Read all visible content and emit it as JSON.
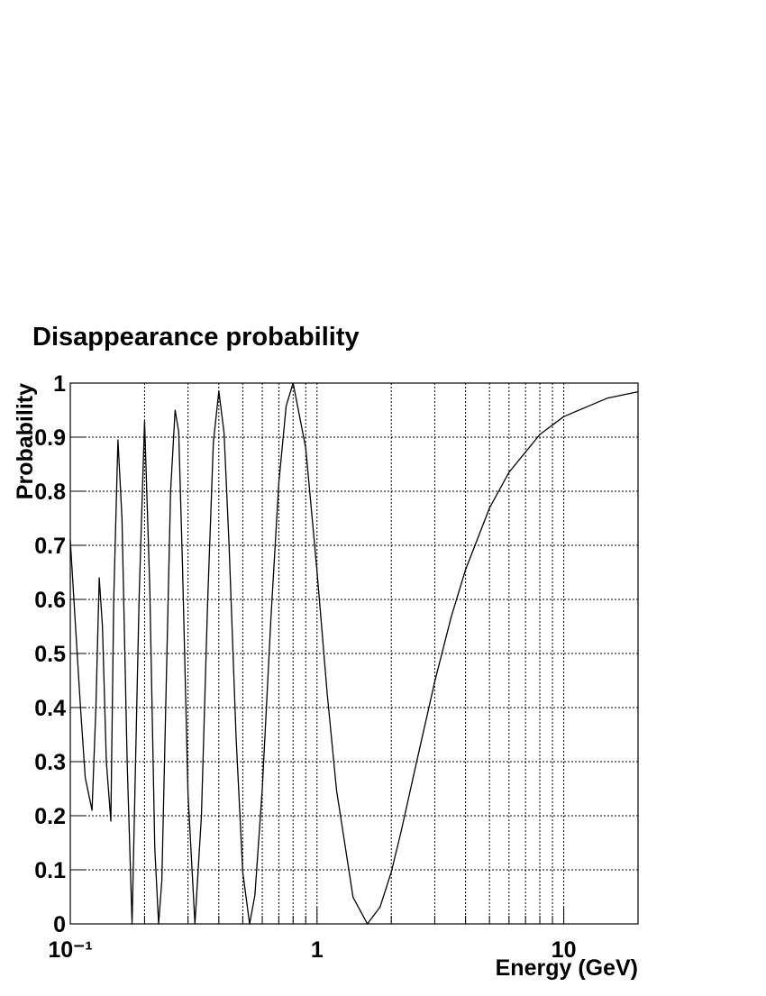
{
  "chart_data": {
    "type": "line",
    "title": "Disappearance probability",
    "xlabel": "Energy (GeV)",
    "ylabel": "Probability",
    "xscale": "log",
    "grid": true,
    "color": "#000000",
    "xlim": [
      0.1,
      20
    ],
    "ylim": [
      0,
      1
    ],
    "xticks": [
      {
        "value": 0.1,
        "label": "10⁻¹"
      },
      1,
      10
    ],
    "xminorticks": [
      0.2,
      0.3,
      0.4,
      0.5,
      0.6,
      0.7,
      0.8,
      0.9,
      2,
      3,
      4,
      5,
      6,
      7,
      8,
      9
    ],
    "yticks": [
      0,
      0.1,
      0.2,
      0.3,
      0.4,
      0.5,
      0.6,
      0.7,
      0.8,
      0.9,
      1
    ],
    "x": [
      0.1,
      0.105,
      0.11,
      0.115,
      0.1225,
      0.127,
      0.131,
      0.135,
      0.14,
      0.146,
      0.15,
      0.156,
      0.162,
      0.17,
      0.178,
      0.19,
      0.2,
      0.21,
      0.22,
      0.228,
      0.235,
      0.245,
      0.255,
      0.266,
      0.275,
      0.285,
      0.3,
      0.32,
      0.34,
      0.36,
      0.38,
      0.4,
      0.42,
      0.44,
      0.47,
      0.5,
      0.533,
      0.56,
      0.6,
      0.65,
      0.7,
      0.75,
      0.8,
      0.9,
      1.0,
      1.1,
      1.2,
      1.4,
      1.6,
      1.8,
      2.0,
      2.2,
      2.5,
      3.0,
      3.5,
      4.0,
      5.0,
      6.0,
      8.0,
      10.0,
      15.0,
      20.0
    ],
    "values": [
      0.71,
      0.55,
      0.4,
      0.27,
      0.21,
      0.4,
      0.64,
      0.55,
      0.3,
      0.19,
      0.6,
      0.895,
      0.75,
      0.3,
      0.0,
      0.6,
      0.93,
      0.62,
      0.14,
      0.0,
      0.08,
      0.45,
      0.8,
      0.95,
      0.91,
      0.66,
      0.24,
      0.0,
      0.2,
      0.59,
      0.89,
      0.985,
      0.908,
      0.701,
      0.344,
      0.096,
      0.0,
      0.053,
      0.25,
      0.563,
      0.815,
      0.958,
      1.0,
      0.88,
      0.652,
      0.425,
      0.247,
      0.049,
      0.0,
      0.031,
      0.096,
      0.174,
      0.288,
      0.448,
      0.568,
      0.655,
      0.769,
      0.835,
      0.905,
      0.938,
      0.972,
      0.984
    ]
  }
}
